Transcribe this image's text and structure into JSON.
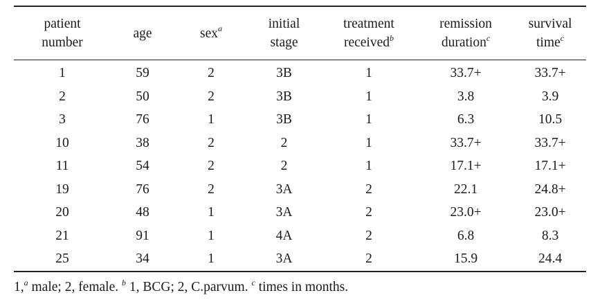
{
  "table": {
    "headers": [
      {
        "line1": "patient",
        "line2": "number",
        "sup": ""
      },
      {
        "line1": "",
        "line2": "age",
        "sup": ""
      },
      {
        "line1": "",
        "line2": "sex",
        "sup": "a",
        "single": true
      },
      {
        "line1": "initial",
        "line2": "stage",
        "sup": ""
      },
      {
        "line1": "treatment",
        "line2": "received",
        "sup": "b"
      },
      {
        "line1": "remission",
        "line2": "duration",
        "sup": "c"
      },
      {
        "line1": "survival",
        "line2": "time",
        "sup": "c"
      }
    ],
    "rows": [
      [
        "1",
        "59",
        "2",
        "3B",
        "1",
        "33.7+",
        "33.7+"
      ],
      [
        "2",
        "50",
        "2",
        "3B",
        "1",
        "3.8",
        "3.9"
      ],
      [
        "3",
        "76",
        "1",
        "3B",
        "1",
        "6.3",
        "10.5"
      ],
      [
        "10",
        "38",
        "2",
        "2",
        "1",
        "33.7+",
        "33.7+"
      ],
      [
        "11",
        "54",
        "2",
        "2",
        "1",
        "17.1+",
        "17.1+"
      ],
      [
        "19",
        "76",
        "2",
        "3A",
        "2",
        "22.1",
        "24.8+"
      ],
      [
        "20",
        "48",
        "1",
        "3A",
        "2",
        "23.0+",
        "23.0+"
      ],
      [
        "21",
        "91",
        "1",
        "4A",
        "2",
        "6.8",
        "8.3"
      ],
      [
        "25",
        "34",
        "1",
        "3A",
        "2",
        "15.9",
        "24.4"
      ]
    ]
  },
  "footnote": {
    "a_prefix": "1,",
    "a_mark": "a",
    "a_text": " male; 2, female.",
    "b_mark": "b",
    "b_text": " 1, BCG; 2, C.parvum.",
    "c_mark": "c",
    "c_text": " times in months."
  }
}
